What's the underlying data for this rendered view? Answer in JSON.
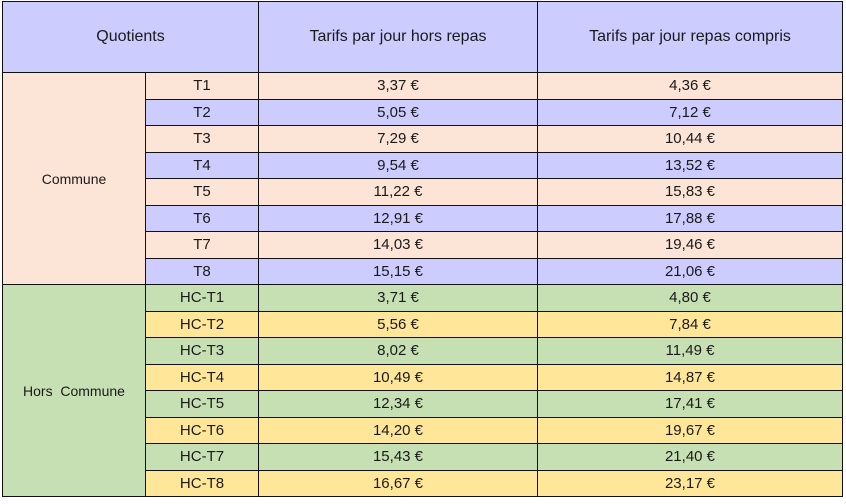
{
  "header": {
    "col_quotients": "Quotients",
    "col_hors_repas": "Tarifs par jour hors repas",
    "col_repas_compris": "Tarifs par jour repas compris"
  },
  "groups": [
    {
      "label": "Commune",
      "rows": [
        {
          "code": "T1",
          "hors_repas": "3,37 €",
          "repas_compris": "4,36 €"
        },
        {
          "code": "T2",
          "hors_repas": "5,05 €",
          "repas_compris": "7,12 €"
        },
        {
          "code": "T3",
          "hors_repas": "7,29 €",
          "repas_compris": "10,44 €"
        },
        {
          "code": "T4",
          "hors_repas": "9,54 €",
          "repas_compris": "13,52 €"
        },
        {
          "code": "T5",
          "hors_repas": "11,22 €",
          "repas_compris": "15,83 €"
        },
        {
          "code": "T6",
          "hors_repas": "12,91 €",
          "repas_compris": "17,88 €"
        },
        {
          "code": "T7",
          "hors_repas": "14,03 €",
          "repas_compris": "19,46 €"
        },
        {
          "code": "T8",
          "hors_repas": "15,15 €",
          "repas_compris": "21,06 €"
        }
      ]
    },
    {
      "label": "Hors  Commune",
      "rows": [
        {
          "code": "HC-T1",
          "hors_repas": "3,71 €",
          "repas_compris": "4,80 €"
        },
        {
          "code": "HC-T2",
          "hors_repas": "5,56 €",
          "repas_compris": "7,84 €"
        },
        {
          "code": "HC-T3",
          "hors_repas": "8,02 €",
          "repas_compris": "11,49 €"
        },
        {
          "code": "HC-T4",
          "hors_repas": "10,49 €",
          "repas_compris": "14,87 €"
        },
        {
          "code": "HC-T5",
          "hors_repas": "12,34 €",
          "repas_compris": "17,41 €"
        },
        {
          "code": "HC-T6",
          "hors_repas": "14,20 €",
          "repas_compris": "19,67 €"
        },
        {
          "code": "HC-T7",
          "hors_repas": "15,43 €",
          "repas_compris": "21,40 €"
        },
        {
          "code": "HC-T8",
          "hors_repas": "16,67 €",
          "repas_compris": "23,17 €"
        }
      ]
    }
  ],
  "colors": {
    "header_bg": "#ccccff",
    "commune_band_a": "#fce4d6",
    "commune_band_b": "#ccccff",
    "hors_commune_band_a": "#c6e0b4",
    "hors_commune_band_b": "#ffe699"
  }
}
